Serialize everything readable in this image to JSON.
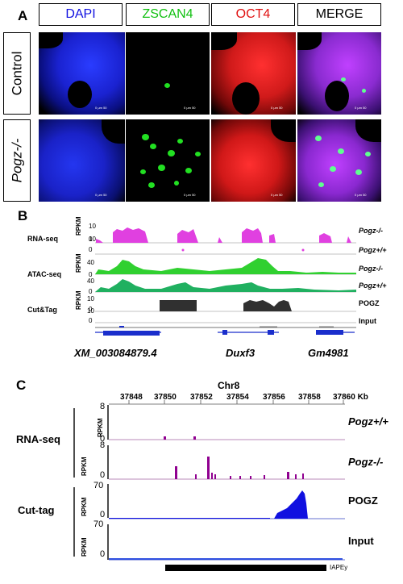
{
  "panelA": {
    "letter": "A",
    "headers": [
      {
        "label": "DAPI",
        "color": "#1010e0"
      },
      {
        "label": "ZSCAN4",
        "color": "#10c010"
      },
      {
        "label": "OCT4",
        "color": "#e01010"
      },
      {
        "label": "MERGE",
        "color": "#000000"
      }
    ],
    "rows": [
      {
        "label": "Control",
        "italic": false
      },
      {
        "label": "Pogz-/-",
        "italic": true
      }
    ],
    "scale_text": "0  μm  50"
  },
  "panelB": {
    "letter": "B",
    "tracks": [
      {
        "group": "RNA-seq",
        "unit": "RPKM",
        "max": "10",
        "min": "0",
        "label": "Pogz-/-",
        "italic": true,
        "color": "#e040e0"
      },
      {
        "group": "",
        "unit": "",
        "max": "10",
        "min": "0",
        "label": "Pogz+/+",
        "italic": true,
        "color": "#e040e0"
      },
      {
        "group": "ATAC-seq",
        "unit": "RPKM",
        "max": "40",
        "min": "0",
        "label": "Pogz-/-",
        "italic": true,
        "color": "#30d030"
      },
      {
        "group": "",
        "unit": "",
        "max": "40",
        "min": "0",
        "label": "Pogz+/+",
        "italic": true,
        "color": "#20b060"
      },
      {
        "group": "Cut&Tag",
        "unit": "RPKM",
        "max": "10",
        "min": "0",
        "label": "POGZ",
        "italic": false,
        "color": "#303030"
      },
      {
        "group": "",
        "unit": "",
        "max": "10",
        "min": "0",
        "label": "Input",
        "italic": false,
        "color": "#303030"
      }
    ],
    "genes": [
      "XM_003084879.4",
      "Duxf3",
      "Gm4981"
    ]
  },
  "panelC": {
    "letter": "C",
    "chrom": "Chr8",
    "ticks": [
      "37848",
      "37850",
      "37852",
      "37854",
      "37856",
      "37858",
      "37860 Kb"
    ],
    "groups": [
      "RNA-seq",
      "Cut-tag"
    ],
    "tracks": [
      {
        "unit": "RPKM",
        "max": "8",
        "min": "0",
        "label": "Pogz+/+",
        "italic": true,
        "color": "#900090"
      },
      {
        "unit": "RPKM",
        "max": "8",
        "min": "0",
        "label": "Pogz-/-",
        "italic": true,
        "color": "#900090"
      },
      {
        "unit": "RPKM",
        "max": "70",
        "min": "0",
        "label": "POGZ",
        "italic": false,
        "color": "#1010e0"
      },
      {
        "unit": "RPKM",
        "max": "70",
        "min": "0",
        "label": "Input",
        "italic": false,
        "color": "#1010e0"
      }
    ],
    "element": "IAPEy"
  }
}
